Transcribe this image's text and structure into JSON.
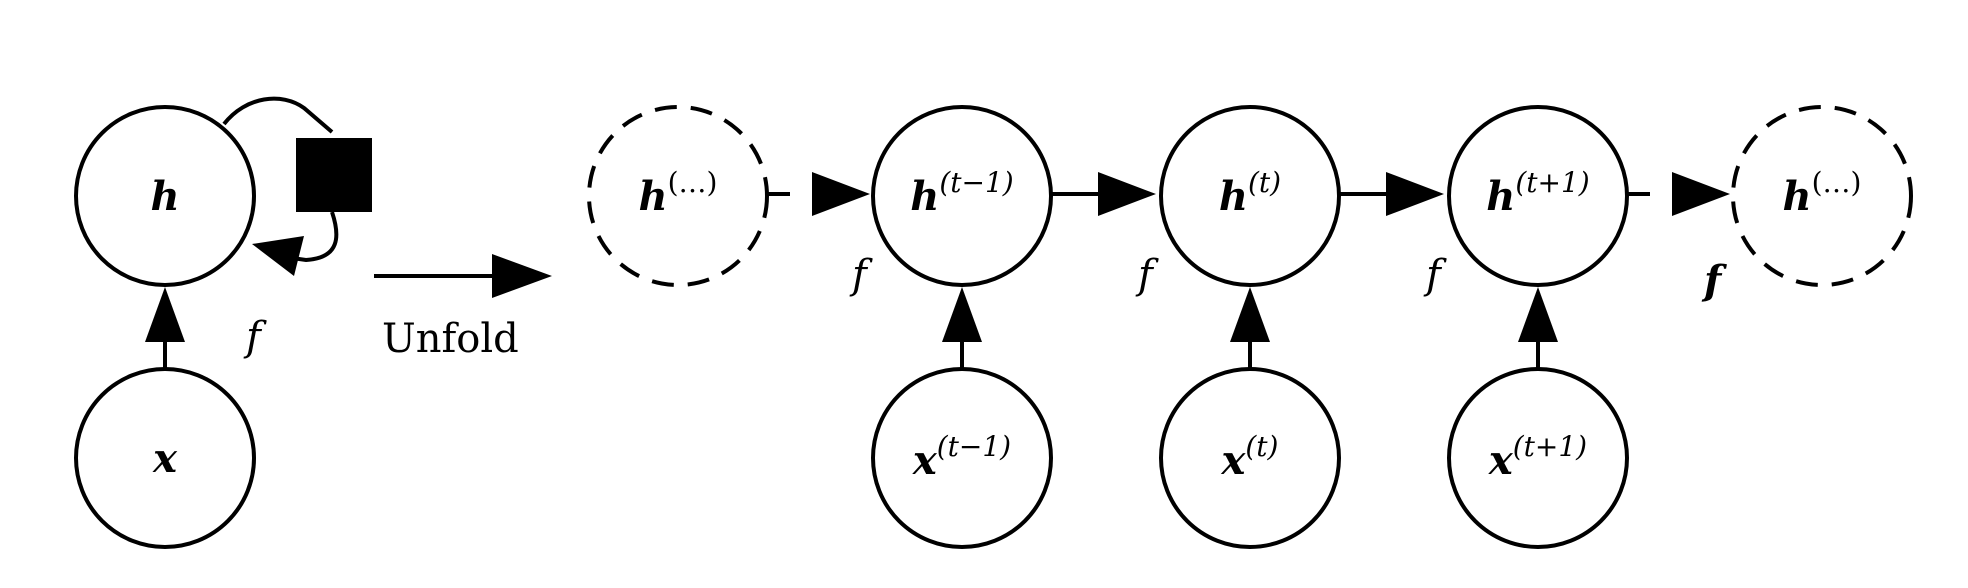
{
  "figure": {
    "description_labels": {
      "unfold": "Unfold"
    },
    "folded": {
      "hidden_node": {
        "base": "h",
        "sup": ""
      },
      "input_node": {
        "base": "x",
        "sup": ""
      },
      "function_label": "f"
    },
    "unfolded": {
      "hidden_nodes": [
        {
          "id": "h-prev-ellipsis",
          "base": "h",
          "sup": "(…)",
          "dashed": true
        },
        {
          "id": "h-t-minus-1",
          "base": "h",
          "sup": "(t−1)",
          "dashed": false
        },
        {
          "id": "h-t",
          "base": "h",
          "sup": "(t)",
          "dashed": false
        },
        {
          "id": "h-t-plus-1",
          "base": "h",
          "sup": "(t+1)",
          "dashed": false
        },
        {
          "id": "h-next-ellipsis",
          "base": "h",
          "sup": "(…)",
          "dashed": true
        }
      ],
      "input_nodes": [
        {
          "id": "x-t-minus-1",
          "base": "x",
          "sup": "(t−1)"
        },
        {
          "id": "x-t",
          "base": "x",
          "sup": "(t)"
        },
        {
          "id": "x-t-plus-1",
          "base": "x",
          "sup": "(t+1)"
        }
      ],
      "function_labels": [
        "f",
        "f",
        "f",
        "f"
      ]
    }
  }
}
